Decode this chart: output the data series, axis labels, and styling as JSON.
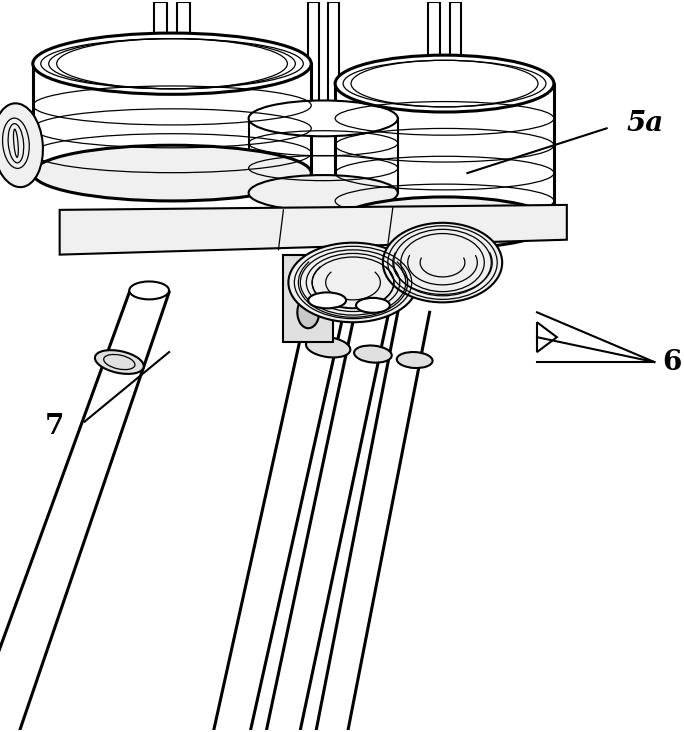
{
  "background_color": "#ffffff",
  "line_color": "#000000",
  "label_5a": "5a",
  "label_6": "6",
  "label_7": "7",
  "figsize": [
    6.84,
    7.32
  ],
  "dpi": 100,
  "font_size": 20,
  "lw_thick": 2.2,
  "lw_med": 1.5,
  "lw_thin": 0.9,
  "fc_white": "#ffffff",
  "fc_light": "#f0f0f0",
  "fc_mid": "#e0e0e0",
  "fc_dark": "#c8c8c8"
}
